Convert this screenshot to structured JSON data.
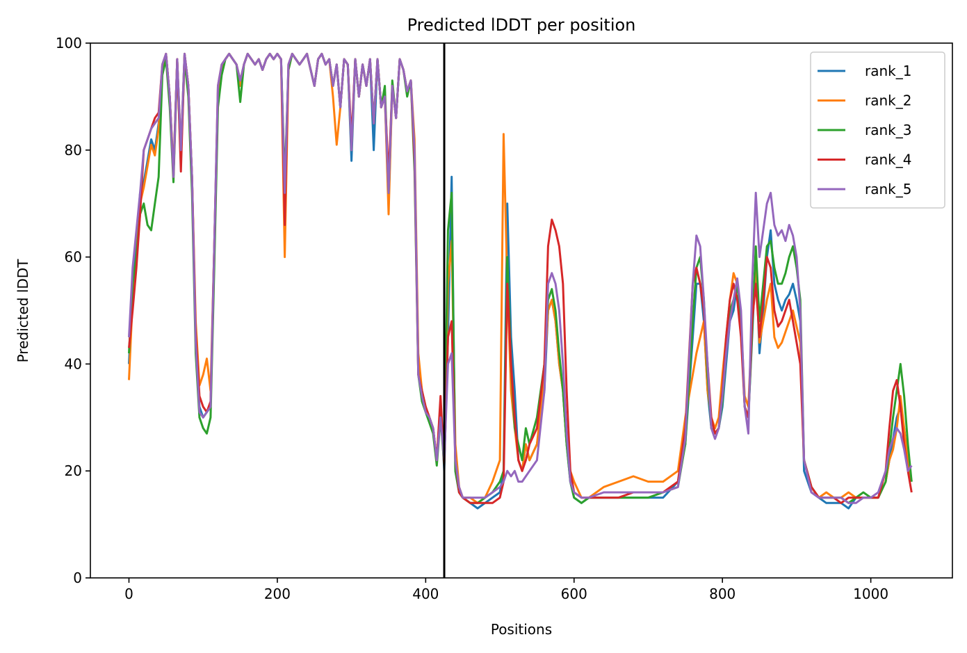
{
  "chart_data": {
    "type": "line",
    "title": "Predicted lDDT per position",
    "xlabel": "Positions",
    "ylabel": "Predicted lDDT",
    "xlim": [
      -52,
      1110
    ],
    "ylim": [
      0,
      100
    ],
    "xticks": [
      0,
      200,
      400,
      600,
      800,
      1000
    ],
    "yticks": [
      0,
      20,
      40,
      60,
      80,
      100
    ],
    "grid": false,
    "legend_position": "top-right",
    "vline_x": 425,
    "x": [
      0,
      5,
      10,
      15,
      20,
      25,
      30,
      35,
      40,
      45,
      50,
      55,
      60,
      65,
      70,
      75,
      80,
      85,
      90,
      95,
      100,
      105,
      110,
      115,
      120,
      125,
      130,
      135,
      140,
      145,
      150,
      155,
      160,
      165,
      170,
      175,
      180,
      185,
      190,
      195,
      200,
      205,
      210,
      215,
      220,
      225,
      230,
      235,
      240,
      245,
      250,
      255,
      260,
      265,
      270,
      275,
      280,
      285,
      290,
      295,
      300,
      305,
      310,
      315,
      320,
      325,
      330,
      335,
      340,
      345,
      350,
      355,
      360,
      365,
      370,
      375,
      380,
      385,
      390,
      395,
      400,
      405,
      410,
      415,
      420,
      425,
      430,
      435,
      440,
      445,
      450,
      460,
      470,
      480,
      490,
      500,
      505,
      510,
      515,
      520,
      525,
      530,
      535,
      540,
      550,
      560,
      565,
      570,
      575,
      580,
      585,
      590,
      595,
      600,
      610,
      620,
      640,
      660,
      680,
      700,
      720,
      740,
      750,
      760,
      765,
      770,
      775,
      780,
      785,
      790,
      795,
      800,
      805,
      810,
      815,
      820,
      825,
      830,
      835,
      840,
      845,
      850,
      855,
      860,
      865,
      870,
      875,
      880,
      885,
      890,
      895,
      900,
      905,
      910,
      920,
      930,
      940,
      950,
      960,
      970,
      980,
      990,
      1000,
      1010,
      1020,
      1025,
      1030,
      1035,
      1040,
      1045,
      1050,
      1055
    ],
    "series": [
      {
        "name": "rank_1",
        "color": "#1f77b4",
        "values": [
          40,
          55,
          62,
          72,
          74,
          78,
          82,
          80,
          85,
          95,
          98,
          90,
          76,
          97,
          80,
          98,
          92,
          75,
          45,
          32,
          30,
          31,
          32,
          60,
          90,
          95,
          97,
          98,
          97,
          96,
          92,
          96,
          98,
          97,
          96,
          97,
          95,
          97,
          98,
          97,
          98,
          97,
          72,
          95,
          98,
          97,
          96,
          97,
          98,
          95,
          92,
          97,
          98,
          96,
          97,
          92,
          96,
          88,
          97,
          96,
          78,
          97,
          90,
          96,
          92,
          97,
          80,
          97,
          88,
          90,
          70,
          92,
          86,
          97,
          95,
          91,
          93,
          80,
          40,
          35,
          32,
          30,
          28,
          22,
          33,
          20,
          45,
          75,
          20,
          16,
          15,
          14,
          13,
          14,
          15,
          16,
          20,
          70,
          45,
          35,
          22,
          20,
          25,
          22,
          25,
          35,
          50,
          52,
          48,
          40,
          35,
          25,
          18,
          15,
          14,
          15,
          15,
          15,
          15,
          15,
          15,
          18,
          25,
          45,
          55,
          55,
          48,
          35,
          28,
          27,
          28,
          32,
          40,
          48,
          50,
          55,
          48,
          32,
          30,
          45,
          60,
          42,
          50,
          60,
          65,
          55,
          52,
          50,
          52,
          53,
          55,
          52,
          48,
          20,
          16,
          15,
          14,
          14,
          14,
          13,
          15,
          15,
          15,
          15,
          18,
          22,
          26,
          30,
          32,
          28,
          22,
          18
        ]
      },
      {
        "name": "rank_2",
        "color": "#ff7f0e",
        "values": [
          37,
          52,
          60,
          70,
          73,
          77,
          81,
          79,
          84,
          95,
          98,
          90,
          76,
          97,
          80,
          98,
          92,
          75,
          48,
          36,
          38,
          41,
          35,
          62,
          90,
          95,
          97,
          98,
          97,
          96,
          92,
          96,
          98,
          97,
          96,
          97,
          95,
          97,
          98,
          97,
          98,
          97,
          60,
          95,
          98,
          97,
          96,
          97,
          98,
          95,
          92,
          97,
          98,
          96,
          97,
          90,
          81,
          88,
          97,
          96,
          80,
          97,
          90,
          96,
          92,
          97,
          85,
          97,
          88,
          90,
          68,
          92,
          86,
          97,
          95,
          91,
          93,
          82,
          42,
          35,
          32,
          30,
          28,
          22,
          32,
          22,
          55,
          63,
          25,
          17,
          15,
          15,
          14,
          15,
          18,
          22,
          83,
          55,
          35,
          28,
          22,
          20,
          25,
          22,
          25,
          38,
          50,
          52,
          48,
          40,
          35,
          25,
          20,
          18,
          15,
          15,
          17,
          18,
          19,
          18,
          18,
          20,
          30,
          38,
          42,
          45,
          48,
          35,
          30,
          28,
          30,
          38,
          45,
          52,
          57,
          55,
          48,
          34,
          32,
          48,
          58,
          44,
          48,
          52,
          55,
          45,
          43,
          44,
          46,
          48,
          50,
          47,
          44,
          22,
          17,
          15,
          16,
          15,
          15,
          16,
          15,
          15,
          15,
          15,
          18,
          22,
          24,
          28,
          34,
          28,
          22,
          18
        ]
      },
      {
        "name": "rank_3",
        "color": "#2ca02c",
        "values": [
          42,
          55,
          60,
          68,
          70,
          66,
          65,
          70,
          75,
          94,
          97,
          88,
          74,
          96,
          78,
          97,
          90,
          72,
          42,
          30,
          28,
          27,
          30,
          58,
          88,
          94,
          97,
          98,
          97,
          96,
          89,
          96,
          98,
          97,
          96,
          97,
          95,
          97,
          98,
          97,
          98,
          97,
          74,
          95,
          98,
          97,
          96,
          97,
          98,
          95,
          92,
          97,
          98,
          96,
          97,
          92,
          96,
          88,
          97,
          96,
          80,
          97,
          90,
          96,
          92,
          97,
          85,
          97,
          88,
          92,
          72,
          93,
          86,
          97,
          95,
          90,
          93,
          76,
          38,
          33,
          31,
          29,
          27,
          21,
          30,
          21,
          65,
          72,
          20,
          16,
          15,
          14,
          14,
          15,
          16,
          18,
          20,
          60,
          40,
          28,
          25,
          22,
          28,
          25,
          30,
          40,
          52,
          54,
          50,
          42,
          35,
          25,
          18,
          15,
          14,
          15,
          15,
          15,
          15,
          15,
          16,
          17,
          25,
          48,
          58,
          60,
          52,
          38,
          28,
          27,
          28,
          33,
          42,
          50,
          52,
          55,
          48,
          32,
          30,
          46,
          62,
          48,
          55,
          62,
          63,
          58,
          55,
          55,
          57,
          60,
          62,
          58,
          52,
          22,
          17,
          15,
          15,
          15,
          15,
          14,
          15,
          16,
          15,
          15,
          18,
          24,
          30,
          35,
          40,
          34,
          25,
          18
        ]
      },
      {
        "name": "rank_4",
        "color": "#d62728",
        "values": [
          43,
          50,
          58,
          68,
          80,
          82,
          84,
          86,
          87,
          96,
          98,
          90,
          75,
          97,
          76,
          98,
          92,
          75,
          46,
          34,
          32,
          31,
          33,
          62,
          92,
          96,
          97,
          98,
          97,
          96,
          93,
          96,
          98,
          97,
          96,
          97,
          95,
          97,
          98,
          97,
          98,
          97,
          66,
          96,
          98,
          97,
          96,
          97,
          98,
          95,
          92,
          97,
          98,
          96,
          97,
          92,
          96,
          88,
          97,
          96,
          82,
          97,
          90,
          96,
          92,
          97,
          85,
          97,
          88,
          90,
          75,
          92,
          86,
          97,
          95,
          91,
          93,
          78,
          38,
          35,
          32,
          30,
          28,
          22,
          34,
          21,
          45,
          48,
          22,
          16,
          15,
          14,
          14,
          14,
          14,
          15,
          18,
          55,
          40,
          30,
          22,
          20,
          22,
          25,
          28,
          40,
          62,
          67,
          65,
          62,
          55,
          35,
          20,
          16,
          15,
          15,
          15,
          15,
          16,
          16,
          16,
          18,
          28,
          55,
          58,
          55,
          50,
          40,
          30,
          27,
          28,
          35,
          45,
          52,
          55,
          52,
          45,
          32,
          30,
          48,
          55,
          45,
          52,
          60,
          58,
          50,
          47,
          48,
          50,
          52,
          48,
          44,
          40,
          22,
          17,
          15,
          15,
          15,
          14,
          15,
          15,
          15,
          15,
          15,
          20,
          28,
          35,
          37,
          32,
          25,
          20,
          16
        ]
      },
      {
        "name": "rank_5",
        "color": "#9467bd",
        "values": [
          45,
          58,
          65,
          72,
          80,
          82,
          84,
          85,
          86,
          96,
          98,
          90,
          75,
          97,
          80,
          98,
          92,
          75,
          44,
          31,
          30,
          31,
          32,
          62,
          92,
          96,
          97,
          98,
          97,
          96,
          93,
          96,
          98,
          97,
          96,
          97,
          95,
          97,
          98,
          97,
          98,
          97,
          72,
          96,
          98,
          97,
          96,
          97,
          98,
          95,
          92,
          97,
          98,
          96,
          97,
          92,
          96,
          88,
          97,
          96,
          80,
          97,
          90,
          96,
          92,
          97,
          85,
          97,
          88,
          90,
          72,
          92,
          86,
          97,
          95,
          91,
          93,
          80,
          38,
          34,
          31,
          30,
          28,
          22,
          30,
          22,
          40,
          42,
          22,
          17,
          15,
          15,
          15,
          15,
          16,
          17,
          18,
          20,
          19,
          20,
          18,
          18,
          19,
          20,
          22,
          35,
          55,
          57,
          55,
          50,
          40,
          27,
          18,
          16,
          15,
          15,
          16,
          16,
          16,
          16,
          16,
          17,
          26,
          55,
          64,
          62,
          52,
          40,
          28,
          26,
          28,
          34,
          42,
          48,
          52,
          56,
          50,
          32,
          27,
          55,
          72,
          60,
          65,
          70,
          72,
          66,
          64,
          65,
          63,
          66,
          64,
          60,
          50,
          22,
          16,
          15,
          15,
          15,
          15,
          14,
          14,
          15,
          15,
          16,
          20,
          24,
          26,
          28,
          27,
          24,
          20,
          21
        ]
      }
    ]
  }
}
